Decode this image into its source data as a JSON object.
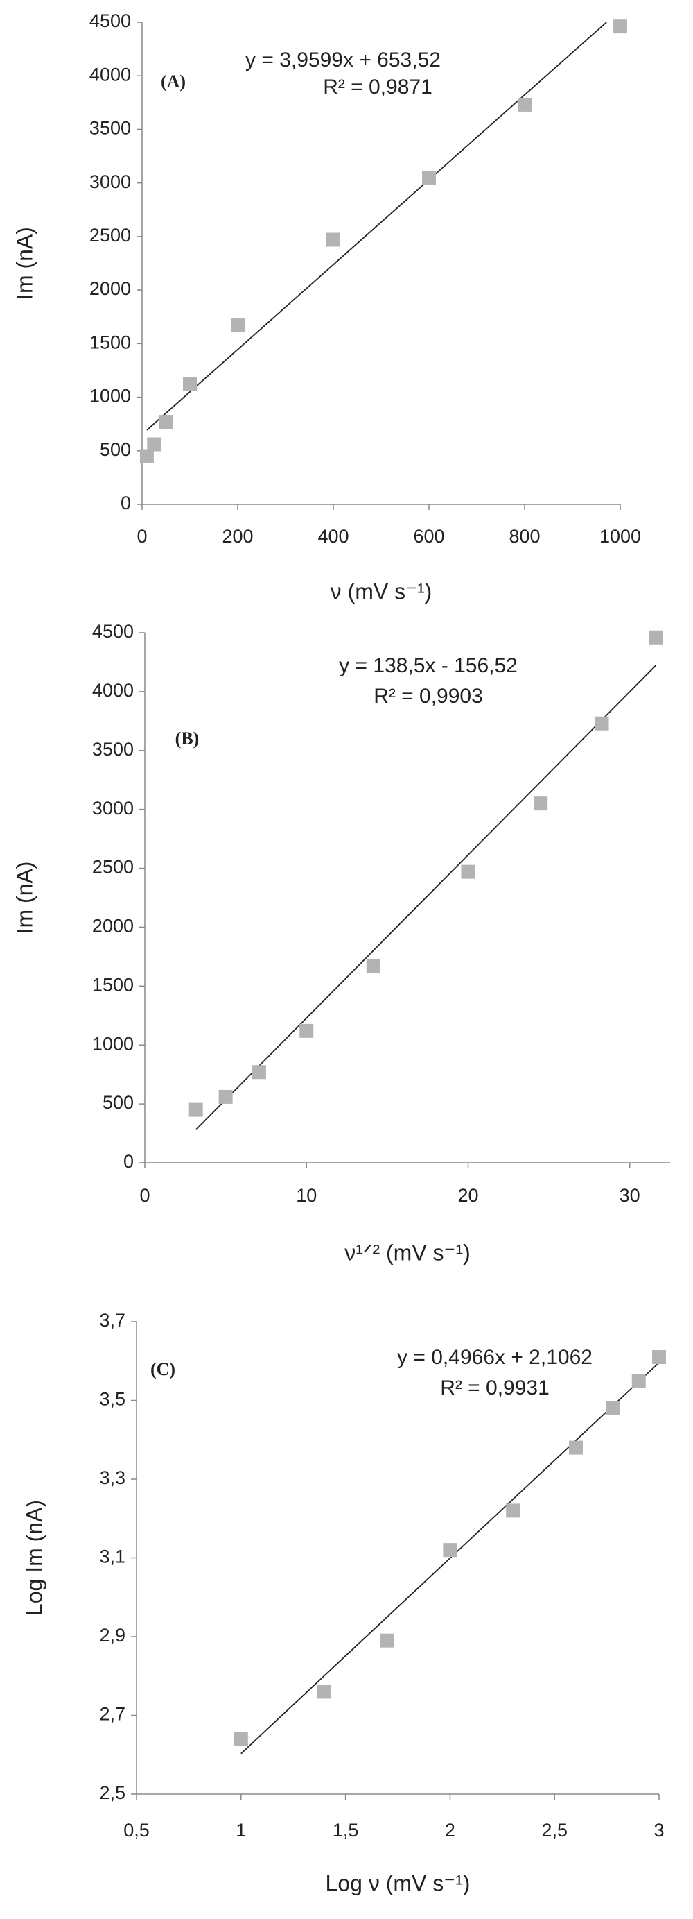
{
  "chart_data": [
    {
      "type": "scatter",
      "panel_label": "(A)",
      "x_label": "ν (mV s⁻¹)",
      "y_label": "Im (nA)",
      "x": [
        10,
        25,
        50,
        100,
        200,
        400,
        600,
        800,
        1000
      ],
      "series": [
        {
          "name": "Im",
          "color": "#b3b3b3",
          "values": [
            450,
            560,
            770,
            1120,
            1670,
            2470,
            3050,
            3730,
            4460
          ]
        }
      ],
      "trendline": {
        "equation": "y = 3,9599x + 653,52",
        "r2_label": "R² = 0,9871",
        "slope": 3.9599,
        "intercept": 653.52,
        "r2": 0.9871
      },
      "xlim": [
        0,
        1000
      ],
      "xticks": [
        0,
        200,
        400,
        600,
        800,
        1000
      ],
      "ylim": [
        0,
        4500
      ],
      "yticks": [
        0,
        500,
        1000,
        1500,
        2000,
        2500,
        3000,
        3500,
        4000,
        4500
      ]
    },
    {
      "type": "scatter",
      "panel_label": "(B)",
      "x_label": "ν¹ᐟ² (mV s⁻¹)",
      "y_label": "Im (nA)",
      "x": [
        3.16,
        5,
        7.07,
        10,
        14.14,
        20,
        24.49,
        28.28,
        31.62
      ],
      "series": [
        {
          "name": "Im",
          "color": "#b3b3b3",
          "values": [
            450,
            560,
            770,
            1120,
            1670,
            2470,
            3050,
            3730,
            4460
          ]
        }
      ],
      "trendline": {
        "equation": "y = 138,5x - 156,52",
        "r2_label": "R² = 0,9903",
        "slope": 138.5,
        "intercept": -156.52,
        "r2": 0.9903
      },
      "xlim": [
        0,
        32.5
      ],
      "xticks": [
        0,
        10,
        20,
        30
      ],
      "ylim": [
        0,
        4500
      ],
      "yticks": [
        0,
        500,
        1000,
        1500,
        2000,
        2500,
        3000,
        3500,
        4000,
        4500
      ]
    },
    {
      "type": "scatter",
      "panel_label": "(C)",
      "x_label": "Log ν (mV s⁻¹)",
      "y_label": "Log Im (nA)",
      "x": [
        1,
        1.398,
        1.699,
        2,
        2.301,
        2.602,
        2.778,
        2.903,
        3
      ],
      "series": [
        {
          "name": "Log Im",
          "color": "#b3b3b3",
          "values": [
            2.64,
            2.76,
            2.89,
            3.12,
            3.22,
            3.38,
            3.48,
            3.55,
            3.61
          ]
        }
      ],
      "trendline": {
        "equation": "y = 0,4966x + 2,1062",
        "r2_label": "R² = 0,9931",
        "slope": 0.4966,
        "intercept": 2.1062,
        "r2": 0.9931
      },
      "xlim": [
        0.5,
        3
      ],
      "xticks": [
        {
          "value": 0.5,
          "label": "0,5"
        },
        1,
        {
          "value": 1.5,
          "label": "1,5"
        },
        2,
        {
          "value": 2.5,
          "label": "2,5"
        },
        3
      ],
      "ylim": [
        2.5,
        3.7
      ],
      "yticks": [
        {
          "value": 2.5,
          "label": "2,5"
        },
        {
          "value": 2.7,
          "label": "2,7"
        },
        {
          "value": 2.9,
          "label": "2,9"
        },
        {
          "value": 3.1,
          "label": "3,1"
        },
        {
          "value": 3.3,
          "label": "3,3"
        },
        {
          "value": 3.5,
          "label": "3,5"
        },
        {
          "value": 3.7,
          "label": "3,7"
        }
      ]
    }
  ]
}
